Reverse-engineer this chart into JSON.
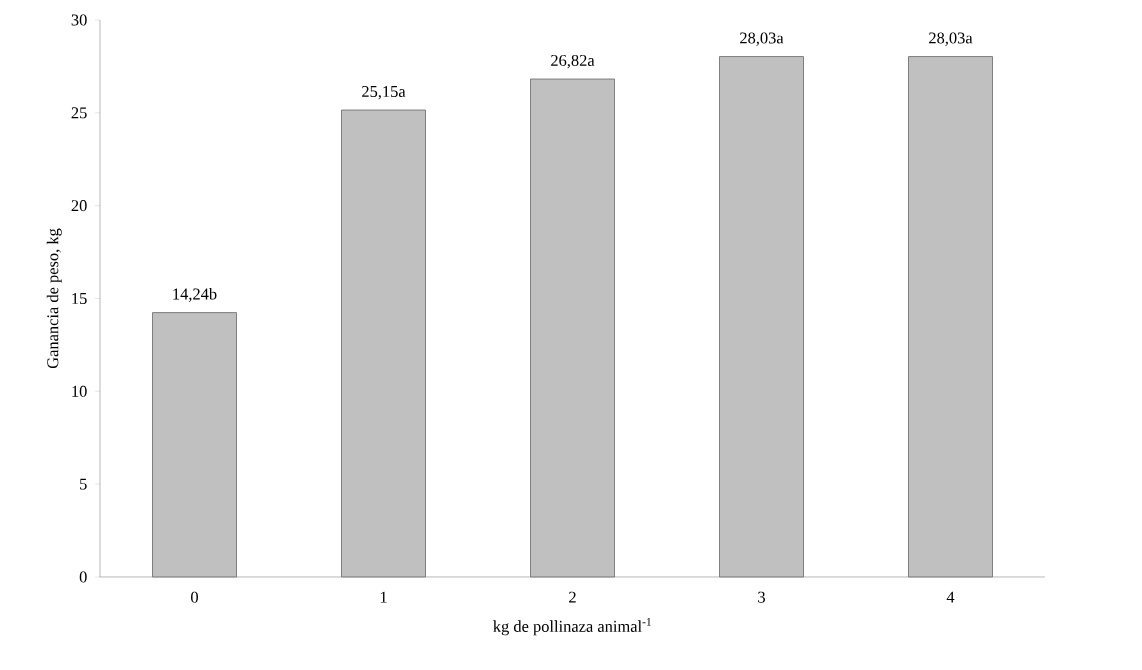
{
  "chart_data": {
    "type": "bar",
    "xlabel": "kg de pollinaza animal$^{-1}$",
    "ylabel": "Ganancia de peso, kg",
    "categories": [
      "0",
      "1",
      "2",
      "3",
      "4"
    ],
    "values": [
      14.24,
      25.15,
      26.82,
      28.03,
      28.03
    ],
    "value_labels": [
      "14,24b",
      "25,15a",
      "26,82a",
      "28,03a",
      "28,03a"
    ],
    "color": "#c0c0c0",
    "ylim": [
      0,
      30
    ],
    "yticks": [
      0,
      5,
      10,
      15,
      20,
      25,
      30
    ],
    "grid": false
  }
}
